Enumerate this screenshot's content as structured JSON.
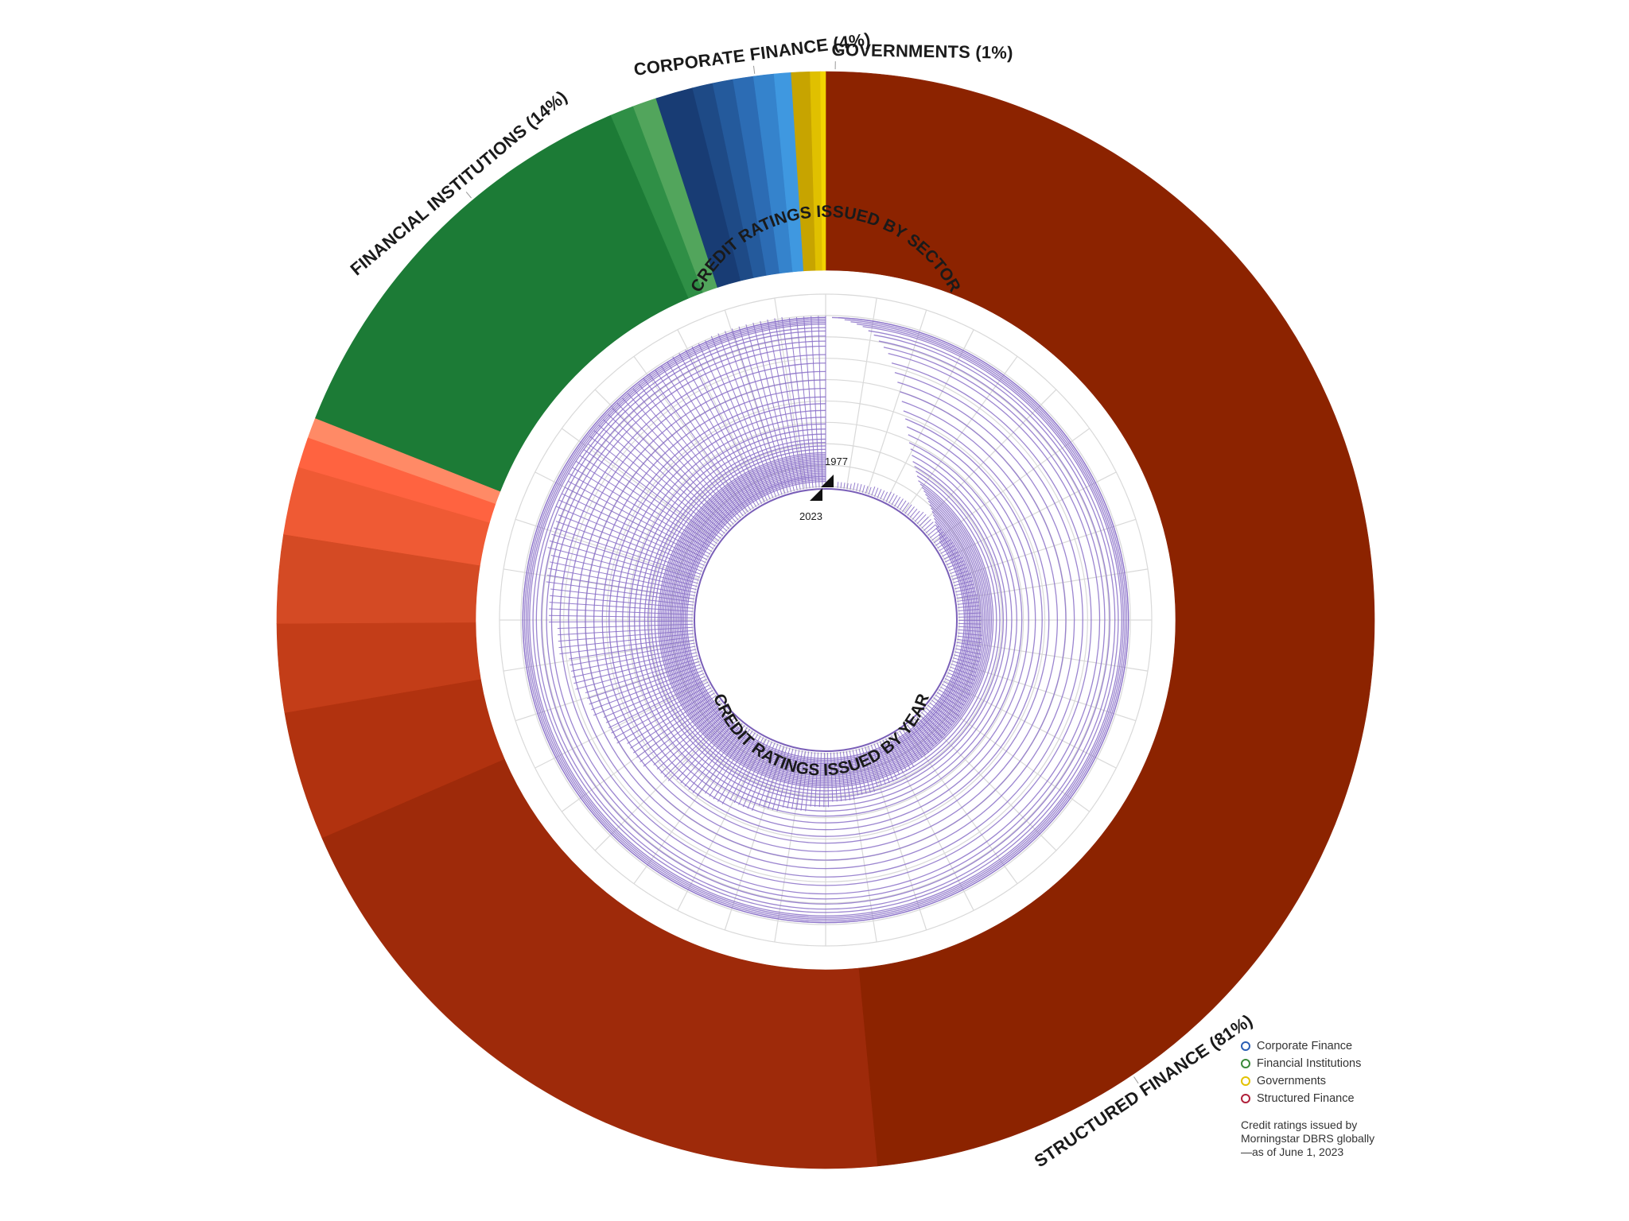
{
  "chart_data": [
    {
      "type": "pie",
      "variant": "donut",
      "title": "CREDIT RATINGS ISSUED BY SECTOR",
      "start_angle_deg": 0,
      "direction": "clockwise",
      "slices": [
        {
          "sector": "Structured Finance",
          "label": "STRUCTURED FINANCE (81%)",
          "percent": 81,
          "color": "#8B2500",
          "sub_segments": [
            {
              "share": 48.5,
              "color": "#8C2300"
            },
            {
              "share": 20.0,
              "color": "#9E2A0A"
            },
            {
              "share": 3.8,
              "color": "#B1320F"
            },
            {
              "share": 2.6,
              "color": "#C33D18"
            },
            {
              "share": 2.6,
              "color": "#D44A24"
            },
            {
              "share": 2.0,
              "color": "#EF5A34"
            },
            {
              "share": 0.9,
              "color": "#FF6340"
            },
            {
              "share": 0.6,
              "color": "#FF8A66"
            }
          ]
        },
        {
          "sector": "Financial Institutions",
          "label": "FINANCIAL INSTITUTIONS (14%)",
          "percent": 14,
          "color": "#1C7B36",
          "sub_segments": [
            {
              "share": 12.6,
              "color": "#1C7B36"
            },
            {
              "share": 0.7,
              "color": "#2F8F46"
            },
            {
              "share": 0.7,
              "color": "#52A55C"
            }
          ]
        },
        {
          "sector": "Corporate Finance",
          "label": "CORPORATE FINANCE (4%)",
          "percent": 4,
          "color": "#1E4E8C",
          "sub_segments": [
            {
              "share": 1.1,
              "color": "#183C74"
            },
            {
              "share": 0.6,
              "color": "#1E4A86"
            },
            {
              "share": 0.6,
              "color": "#245A9C"
            },
            {
              "share": 0.6,
              "color": "#2C6CB4"
            },
            {
              "share": 0.6,
              "color": "#3583CC"
            },
            {
              "share": 0.5,
              "color": "#3F98E0"
            }
          ]
        },
        {
          "sector": "Governments",
          "label": "GOVERNMENTS (1%)",
          "percent": 1,
          "color": "#D9B800",
          "sub_segments": [
            {
              "share": 0.55,
              "color": "#C7A400"
            },
            {
              "share": 0.3,
              "color": "#E0C000"
            },
            {
              "share": 0.15,
              "color": "#F2D400"
            }
          ]
        }
      ]
    },
    {
      "type": "bar",
      "variant": "radial",
      "title": "CREDIT RATINGS ISSUED BY YEAR",
      "x_start": 1977,
      "x_end": 2023,
      "start_label": "1977",
      "end_label": "2023",
      "color": "#8A70C8",
      "x": [
        1977,
        1978,
        1979,
        1980,
        1981,
        1982,
        1983,
        1984,
        1985,
        1986,
        1987,
        1988,
        1989,
        1990,
        1991,
        1992,
        1993,
        1994,
        1995,
        1996,
        1997,
        1998,
        1999,
        2000,
        2001,
        2002,
        2003,
        2004,
        2005,
        2006,
        2007,
        2008,
        2009,
        2010,
        2011,
        2012,
        2013,
        2014,
        2015,
        2016,
        2017,
        2018,
        2019,
        2020,
        2021,
        2022,
        2023
      ],
      "relative_values": [
        0.03,
        0.04,
        0.05,
        0.06,
        0.06,
        0.07,
        0.08,
        0.09,
        0.1,
        0.11,
        0.12,
        0.13,
        0.14,
        0.15,
        0.16,
        0.17,
        0.18,
        0.19,
        0.2,
        0.22,
        0.24,
        0.26,
        0.28,
        0.31,
        0.34,
        0.37,
        0.41,
        0.45,
        0.49,
        0.53,
        0.58,
        0.63,
        0.68,
        0.73,
        0.78,
        0.83,
        0.86,
        0.89,
        0.92,
        0.94,
        0.96,
        0.97,
        0.98,
        0.99,
        1.0,
        1.0,
        0.99
      ]
    }
  ],
  "legend": [
    {
      "label": "Corporate Finance",
      "color": "#2B5FB4"
    },
    {
      "label": "Financial Institutions",
      "color": "#3A8A3A"
    },
    {
      "label": "Governments",
      "color": "#E3C200"
    },
    {
      "label": "Structured Finance",
      "color": "#B0203A"
    }
  ],
  "note": "Credit ratings issued by Morningstar DBRS globally—as of June 1, 2023"
}
